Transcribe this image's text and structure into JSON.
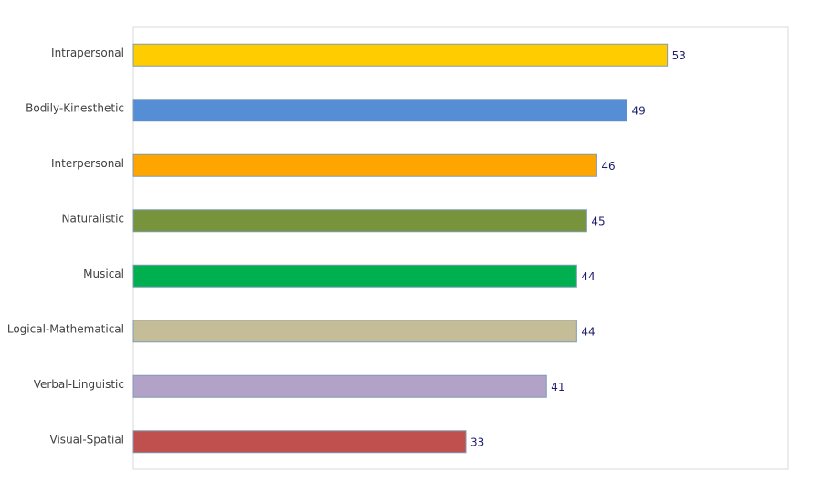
{
  "chart_data": {
    "type": "bar",
    "orientation": "horizontal",
    "categories": [
      "Intrapersonal",
      "Bodily-Kinesthetic",
      "Interpersonal",
      "Naturalistic",
      "Musical",
      "Logical-Mathematical",
      "Verbal-Linguistic",
      "Visual-Spatial"
    ],
    "values": [
      53,
      49,
      46,
      45,
      44,
      44,
      41,
      33
    ],
    "colors": [
      "#ffcc00",
      "#558ed5",
      "#ffa500",
      "#77933c",
      "#00b050",
      "#c4bd97",
      "#b3a2c7",
      "#c0504d"
    ],
    "xlim": [
      0,
      65
    ]
  }
}
